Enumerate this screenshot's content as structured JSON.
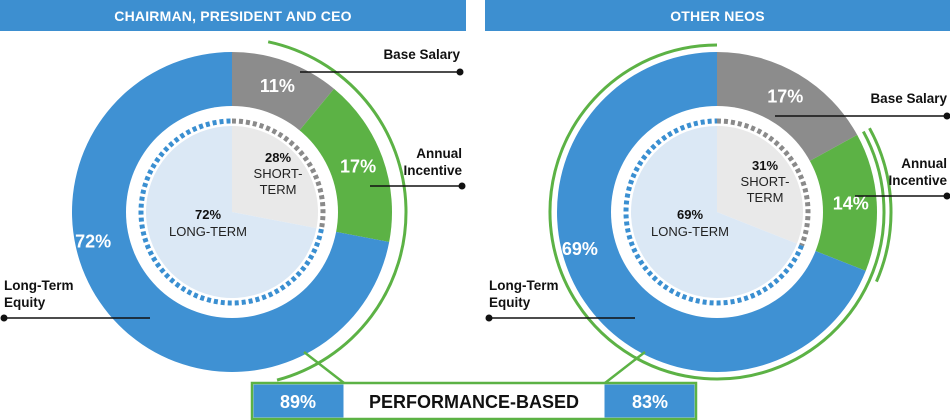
{
  "colors": {
    "header": "#3d8fd0",
    "equity": "#3f91d3",
    "incentive": "#5cb245",
    "salary": "#8c8c8c",
    "long_term_fill": "#dbe8f5",
    "short_term_fill": "#e9e9e9",
    "long_term_dash": "#3a8fd1",
    "short_term_dash": "#8a8a8a",
    "performance_arc": "#5cb245"
  },
  "chart_data": [
    {
      "type": "pie",
      "title": "CHAIRMAN, PRESIDENT AND CEO",
      "slices": [
        {
          "label": "Base Salary",
          "value": 11,
          "display": "11%",
          "color": "#8c8c8c"
        },
        {
          "label": "Annual Incentive",
          "value": 17,
          "display": "17%",
          "color": "#5cb245"
        },
        {
          "label": "Long-Term Equity",
          "value": 72,
          "display": "72%",
          "color": "#3f91d3"
        }
      ],
      "inner": [
        {
          "label": "SHORT-TERM",
          "value": 28,
          "display": "28%"
        },
        {
          "label": "LONG-TERM",
          "value": 72,
          "display": "72%"
        }
      ],
      "performance_based": {
        "value": 89,
        "display": "89%"
      }
    },
    {
      "type": "pie",
      "title": "OTHER NEOS",
      "slices": [
        {
          "label": "Base Salary",
          "value": 17,
          "display": "17%",
          "color": "#8c8c8c"
        },
        {
          "label": "Annual Incentive",
          "value": 14,
          "display": "14%",
          "color": "#5cb245"
        },
        {
          "label": "Long-Term Equity",
          "value": 69,
          "display": "69%",
          "color": "#3f91d3"
        }
      ],
      "inner": [
        {
          "label": "SHORT-TERM",
          "value": 31,
          "display": "31%"
        },
        {
          "label": "LONG-TERM",
          "value": 69,
          "display": "69%"
        }
      ],
      "performance_based": {
        "value": 83,
        "display": "83%"
      }
    }
  ],
  "labels": {
    "base_salary": "Base Salary",
    "annual": "Annual",
    "incentive": "Incentive",
    "long_term": "Long-Term",
    "equity": "Equity",
    "short_term_a": "SHORT-",
    "short_term_b": "TERM",
    "long_term_inner": "LONG-TERM"
  },
  "performance_label": "PERFORMANCE-BASED"
}
